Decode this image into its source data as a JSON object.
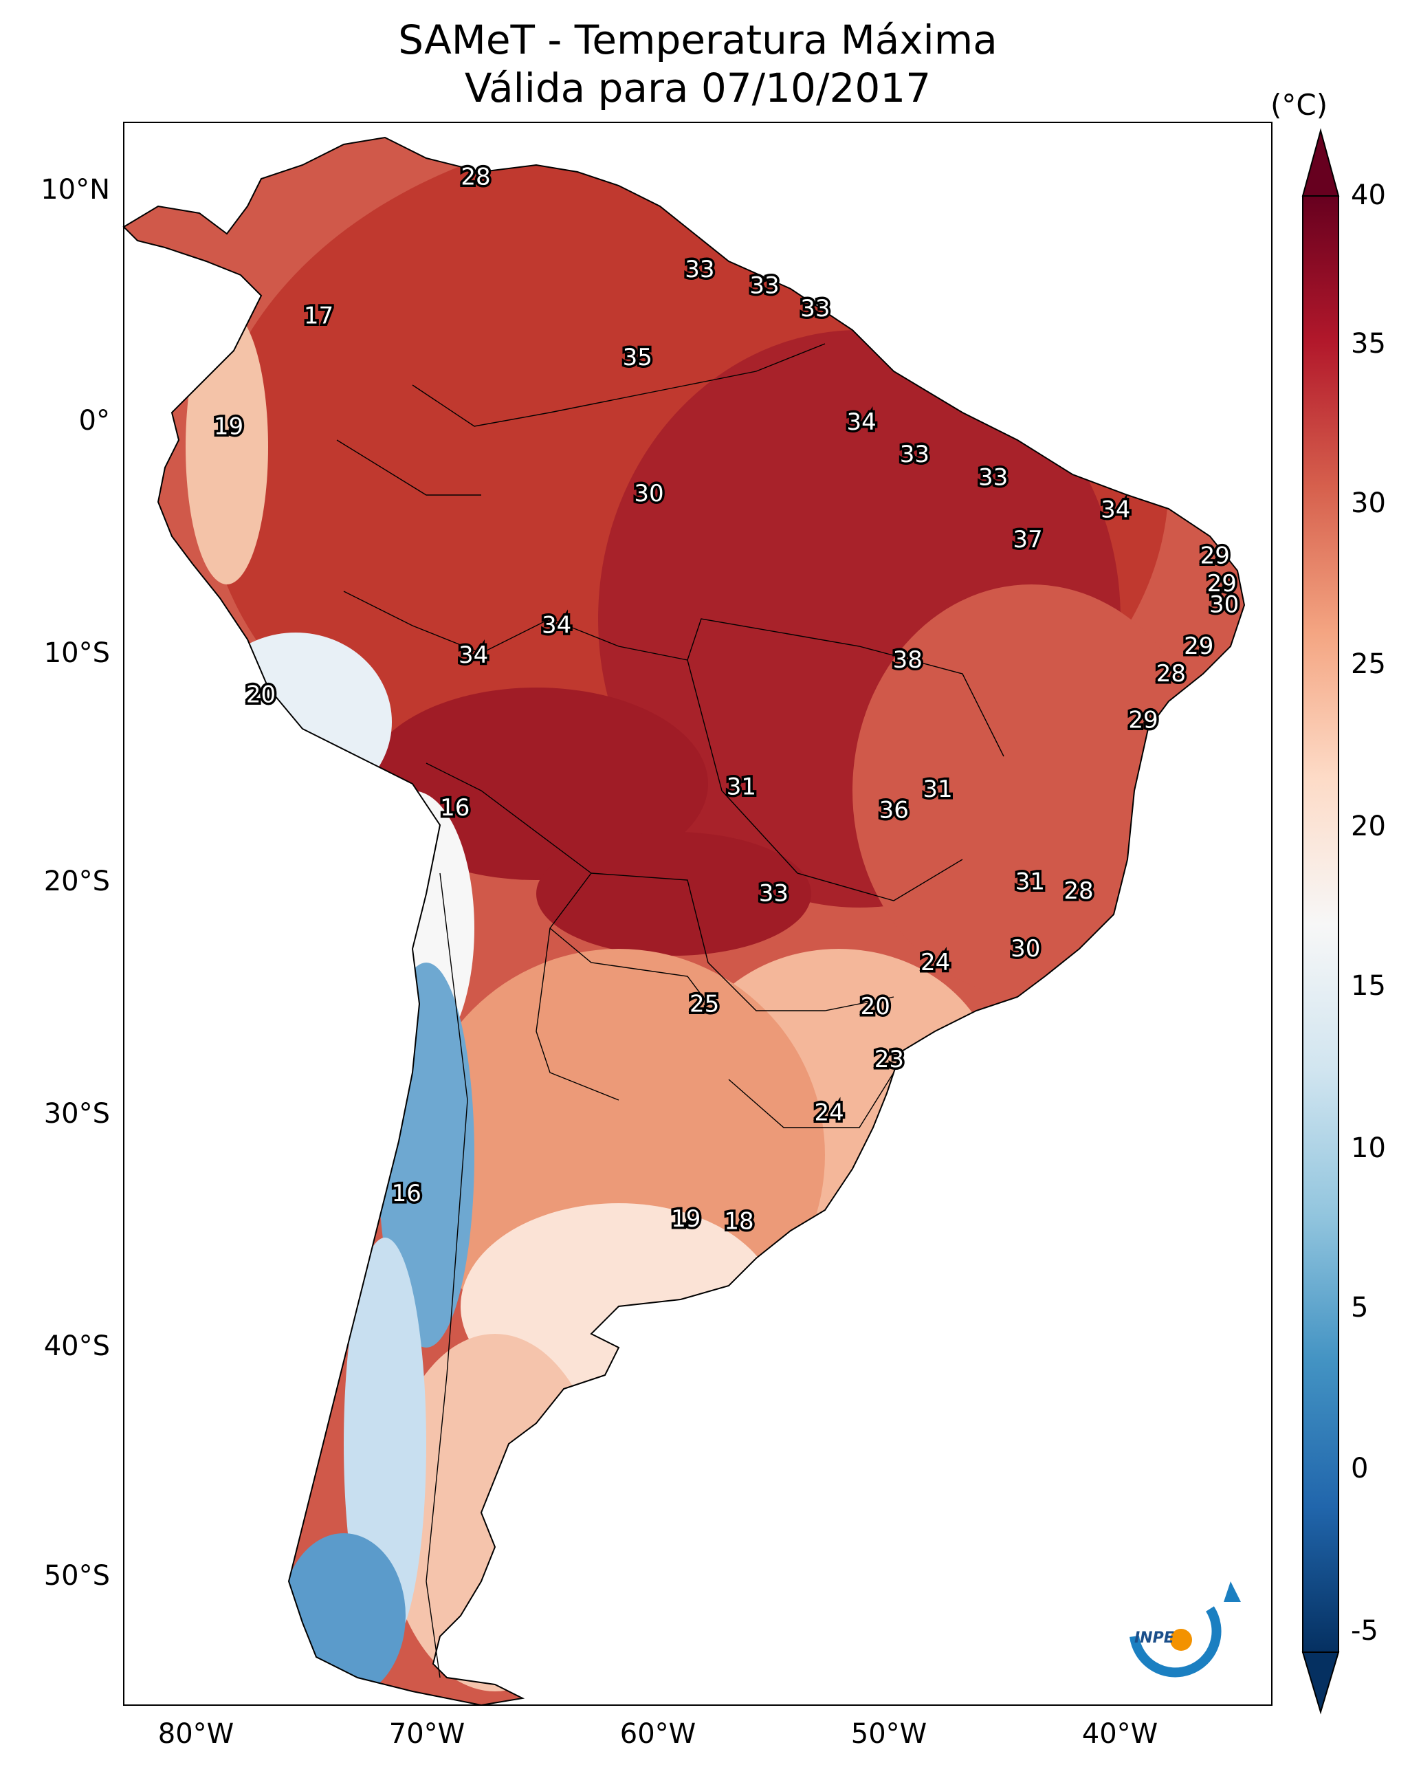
{
  "title": {
    "line1": "SAMeT - Temperatura Máxima",
    "line2": "Válida para 07/10/2017"
  },
  "axes": {
    "lat_ticks": [
      "10°N",
      "0°",
      "10°S",
      "20°S",
      "30°S",
      "40°S",
      "50°S"
    ],
    "lon_ticks": [
      "80°W",
      "70°W",
      "60°W",
      "50°W",
      "40°W"
    ]
  },
  "colorbar": {
    "unit": "(°C)",
    "ticks": [
      "40",
      "35",
      "30",
      "25",
      "20",
      "15",
      "10",
      "5",
      "0",
      "-5"
    ],
    "range": [
      -5,
      40
    ],
    "colormap": "RdBu_r",
    "colors": [
      "#053061",
      "#2166ac",
      "#4393c3",
      "#92c5de",
      "#d1e5f0",
      "#f7f7f7",
      "#fddbc7",
      "#f4a582",
      "#d6604d",
      "#b2182b",
      "#67001f"
    ]
  },
  "map_labels": [
    {
      "value": "28",
      "lon": -67.5,
      "lat": 10.5
    },
    {
      "value": "17",
      "lon": -74.3,
      "lat": 4.5
    },
    {
      "value": "33",
      "lon": -57.8,
      "lat": 6.5
    },
    {
      "value": "33",
      "lon": -55.0,
      "lat": 5.8
    },
    {
      "value": "33",
      "lon": -52.8,
      "lat": 4.8
    },
    {
      "value": "35",
      "lon": -60.5,
      "lat": 2.7
    },
    {
      "value": "19",
      "lon": -78.2,
      "lat": -0.3
    },
    {
      "value": "34",
      "lon": -50.8,
      "lat": -0.1
    },
    {
      "value": "33",
      "lon": -48.5,
      "lat": -1.5
    },
    {
      "value": "33",
      "lon": -45.1,
      "lat": -2.5
    },
    {
      "value": "30",
      "lon": -60.0,
      "lat": -3.2
    },
    {
      "value": "34",
      "lon": -39.8,
      "lat": -3.9
    },
    {
      "value": "37",
      "lon": -43.6,
      "lat": -5.2
    },
    {
      "value": "29",
      "lon": -35.5,
      "lat": -5.9
    },
    {
      "value": "29",
      "lon": -35.2,
      "lat": -7.1
    },
    {
      "value": "30",
      "lon": -35.1,
      "lat": -8.0
    },
    {
      "value": "34",
      "lon": -64.0,
      "lat": -8.9
    },
    {
      "value": "34",
      "lon": -67.6,
      "lat": -10.2
    },
    {
      "value": "38",
      "lon": -48.8,
      "lat": -10.4
    },
    {
      "value": "29",
      "lon": -36.2,
      "lat": -9.8
    },
    {
      "value": "28",
      "lon": -37.4,
      "lat": -11.0
    },
    {
      "value": "29",
      "lon": -38.6,
      "lat": -13.0
    },
    {
      "value": "20",
      "lon": -76.8,
      "lat": -11.9
    },
    {
      "value": "31",
      "lon": -56.0,
      "lat": -15.9
    },
    {
      "value": "31",
      "lon": -47.5,
      "lat": -16.0
    },
    {
      "value": "36",
      "lon": -49.4,
      "lat": -16.9
    },
    {
      "value": "16",
      "lon": -68.4,
      "lat": -16.8
    },
    {
      "value": "31",
      "lon": -43.5,
      "lat": -20.0
    },
    {
      "value": "28",
      "lon": -41.4,
      "lat": -20.4
    },
    {
      "value": "33",
      "lon": -54.6,
      "lat": -20.5
    },
    {
      "value": "30",
      "lon": -43.7,
      "lat": -22.9
    },
    {
      "value": "24",
      "lon": -47.6,
      "lat": -23.5
    },
    {
      "value": "25",
      "lon": -57.6,
      "lat": -25.3
    },
    {
      "value": "20",
      "lon": -50.2,
      "lat": -25.4
    },
    {
      "value": "23",
      "lon": -49.6,
      "lat": -27.7
    },
    {
      "value": "24",
      "lon": -52.2,
      "lat": -30.0
    },
    {
      "value": "16",
      "lon": -70.5,
      "lat": -33.5
    },
    {
      "value": "19",
      "lon": -58.4,
      "lat": -34.6
    },
    {
      "value": "18",
      "lon": -56.1,
      "lat": -34.7
    }
  ],
  "logo": {
    "text": "INPE"
  }
}
